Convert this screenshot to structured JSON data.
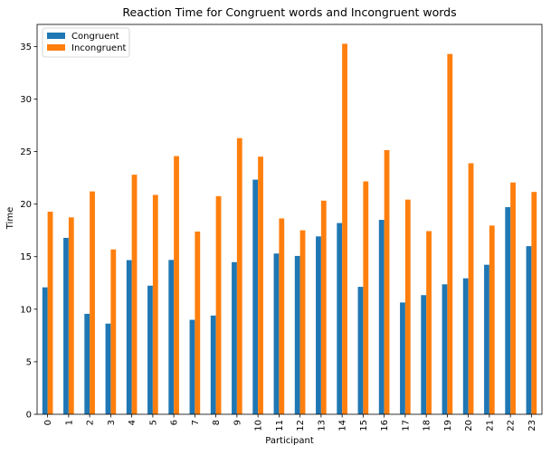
{
  "chart_data": {
    "type": "bar",
    "title": "Reaction Time for Congruent words and Incongruent words",
    "xlabel": "Participant",
    "ylabel": "Time",
    "ylim": [
      0,
      37.1
    ],
    "yticks": [
      0,
      5,
      10,
      15,
      20,
      25,
      30,
      35
    ],
    "ytick_labels": [
      "0",
      "5",
      "10",
      "15",
      "20",
      "25",
      "30",
      "35"
    ],
    "grid": false,
    "legend_position": "top-left",
    "categories": [
      "0",
      "1",
      "2",
      "3",
      "4",
      "5",
      "6",
      "7",
      "8",
      "9",
      "10",
      "11",
      "12",
      "13",
      "14",
      "15",
      "16",
      "17",
      "18",
      "19",
      "20",
      "21",
      "22",
      "23"
    ],
    "series": [
      {
        "name": "Congruent",
        "color": "#1f77b4",
        "values": [
          12.08,
          16.79,
          9.56,
          8.63,
          14.67,
          12.24,
          14.69,
          8.99,
          9.4,
          14.48,
          22.33,
          15.3,
          15.07,
          16.93,
          18.2,
          12.13,
          18.5,
          10.64,
          11.34,
          12.37,
          12.94,
          14.23,
          19.71,
          16.0
        ]
      },
      {
        "name": "Incongruent",
        "color": "#ff7f0e",
        "values": [
          19.28,
          18.74,
          21.21,
          15.69,
          22.8,
          20.88,
          24.57,
          17.39,
          20.76,
          26.28,
          24.52,
          18.64,
          17.51,
          20.33,
          35.26,
          22.16,
          25.14,
          20.43,
          17.43,
          34.29,
          23.89,
          17.96,
          22.06,
          21.16
        ]
      }
    ]
  }
}
